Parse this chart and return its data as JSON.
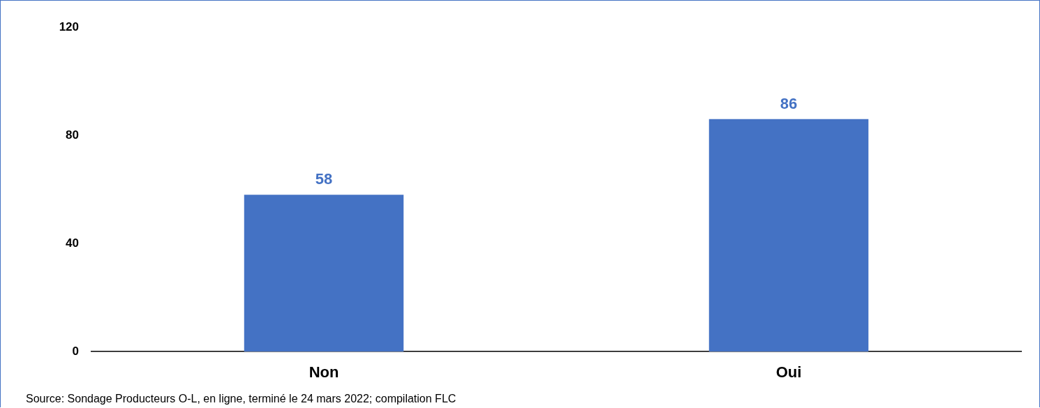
{
  "chart_data": {
    "type": "bar",
    "categories": [
      "Non",
      "Oui"
    ],
    "values": [
      58,
      86
    ],
    "color": "#4472c4",
    "ylim": [
      0,
      120
    ],
    "yticks": [
      0,
      40,
      80,
      120
    ],
    "grid": false,
    "legend": false,
    "data_labels": true,
    "annotations": [
      "Source: Sondage Producteurs O-L, en ligne, terminé le 24 mars 2022; compilation FLC"
    ]
  }
}
